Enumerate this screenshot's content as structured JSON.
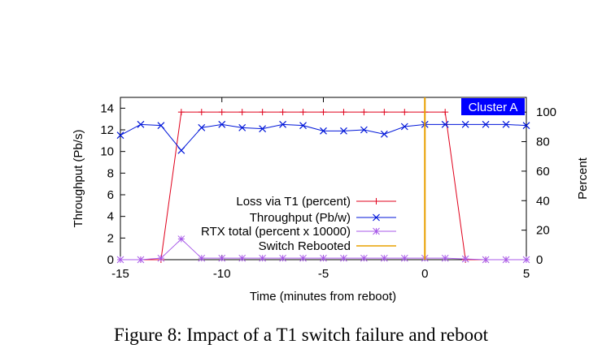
{
  "caption": "Figure 8: Impact of a T1 switch failure and reboot",
  "chart_data": {
    "type": "line",
    "badge": "Cluster A",
    "xlabel": "Time (minutes from reboot)",
    "ylabel": "Throughput (Pb/s)",
    "y2label": "Percent",
    "xlim": [
      -15,
      5
    ],
    "ylim": [
      0,
      15
    ],
    "y2lim": [
      0,
      110
    ],
    "xticks": [
      -15,
      -10,
      -5,
      0,
      5
    ],
    "yticks": [
      0,
      2,
      4,
      6,
      8,
      10,
      12,
      14
    ],
    "y2ticks": [
      0,
      20,
      40,
      60,
      80,
      100
    ],
    "legend_position": "center",
    "series": [
      {
        "name": "Loss via T1 (percent)",
        "axis": "y2",
        "color": "#e0001b",
        "marker": "plus",
        "x": [
          -15,
          -14,
          -13,
          -12,
          -11,
          -10,
          -9,
          -8,
          -7,
          -6,
          -5,
          -4,
          -3,
          -2,
          -1,
          0,
          1,
          2,
          3,
          4,
          5
        ],
        "y": [
          0,
          0,
          0,
          100,
          100,
          100,
          100,
          100,
          100,
          100,
          100,
          100,
          100,
          100,
          100,
          100,
          100,
          0,
          0,
          0,
          0
        ]
      },
      {
        "name": "Throughput (Pb/w)",
        "axis": "y",
        "color": "#0016d9",
        "marker": "x",
        "x": [
          -15,
          -14,
          -13,
          -12,
          -11,
          -10,
          -9,
          -8,
          -7,
          -6,
          -5,
          -4,
          -3,
          -2,
          -1,
          0,
          1,
          2,
          3,
          4,
          5
        ],
        "y": [
          11.5,
          12.5,
          12.4,
          10.1,
          12.2,
          12.5,
          12.2,
          12.1,
          12.5,
          12.4,
          11.9,
          11.9,
          12.0,
          11.6,
          12.3,
          12.5,
          12.5,
          12.5,
          12.5,
          12.5,
          12.4
        ]
      },
      {
        "name": "RTX total (percent x 10000)",
        "axis": "y2",
        "color": "#a85ae8",
        "marker": "star",
        "x": [
          -15,
          -14,
          -13,
          -12,
          -11,
          -10,
          -9,
          -8,
          -7,
          -6,
          -5,
          -4,
          -3,
          -2,
          -1,
          0,
          1,
          2,
          3,
          4,
          5
        ],
        "y": [
          0,
          0,
          1,
          14,
          1,
          1,
          1,
          1,
          1,
          1,
          1,
          1,
          1,
          1,
          1,
          1,
          1,
          0.5,
          0,
          0,
          0
        ]
      },
      {
        "name": "Switch Rebooted",
        "type": "vline",
        "color": "#e8a000",
        "x": 0
      }
    ]
  }
}
